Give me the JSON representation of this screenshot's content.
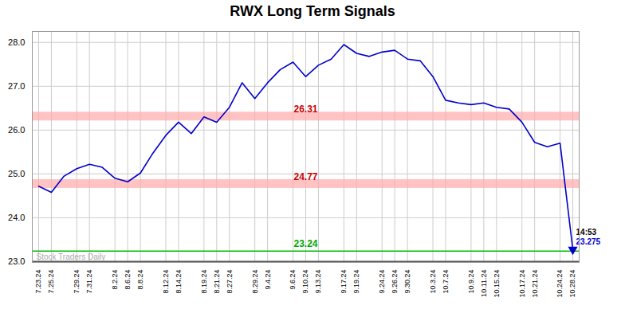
{
  "chart_data": {
    "type": "line",
    "title": "RWX Long Term Signals",
    "categories": [
      "7.23.24",
      "7.25.24",
      null,
      "7.29.24",
      "7.31.24",
      null,
      "8.2.24",
      "8.6.24",
      "8.8.24",
      null,
      "8.12.24",
      "8.14.24",
      null,
      "8.19.24",
      "8.21.24",
      "8.27.24",
      null,
      "8.29.24",
      "9.4.24",
      null,
      "9.6.24",
      "9.10.24",
      "9.13.24",
      null,
      "9.17.24",
      "9.19.24",
      null,
      "9.24.24",
      "9.26.24",
      "9.30.24",
      null,
      "10.3.24",
      "10.7.24",
      null,
      "10.9.24",
      "10.11.24",
      "10.15.24",
      null,
      "10.17.24",
      "10.21.24",
      null,
      "10.24.24",
      "10.28.24"
    ],
    "values": [
      24.72,
      24.58,
      24.95,
      25.12,
      25.22,
      25.15,
      24.9,
      24.82,
      25.02,
      25.48,
      25.88,
      26.18,
      25.92,
      26.3,
      26.18,
      26.52,
      27.08,
      26.72,
      27.08,
      27.38,
      27.55,
      27.22,
      27.48,
      27.62,
      27.95,
      27.75,
      27.68,
      27.78,
      27.82,
      27.62,
      27.58,
      27.22,
      26.68,
      26.62,
      26.58,
      26.62,
      26.52,
      26.48,
      26.18,
      25.72,
      25.62,
      25.7,
      23.275
    ],
    "color": "#0000cc",
    "ylim": [
      22.98,
      28.25
    ],
    "yticks": [
      23,
      24,
      25,
      26,
      27,
      28
    ],
    "grid": true,
    "reference_lines": [
      {
        "value": 26.31,
        "label": "26.31",
        "color": "#ffaaaa",
        "label_color": "#cc0000",
        "line_style": "band"
      },
      {
        "value": 24.77,
        "label": "24.77",
        "color": "#ffaaaa",
        "label_color": "#cc0000",
        "line_style": "band"
      },
      {
        "value": 23.24,
        "label": "23.24",
        "color": "#00bb00",
        "label_color": "#00aa00",
        "line_style": "solid"
      },
      {
        "value": 23,
        "color": "#555555",
        "line_style": "solid"
      }
    ],
    "markers": [
      {
        "x": "10.28.24",
        "y": 23.275,
        "marker": "triangle_down",
        "color": "#0000cc"
      }
    ],
    "annotations": [
      {
        "text": "14:53",
        "x": "10.28.24",
        "y": 23.275,
        "color": "#000000"
      },
      {
        "text": "23.275",
        "x": "10.28.24",
        "y": 23.275,
        "color": "#0000cc"
      },
      {
        "text": "Stock Traders Daily",
        "color": "#aaaaaa"
      }
    ]
  }
}
